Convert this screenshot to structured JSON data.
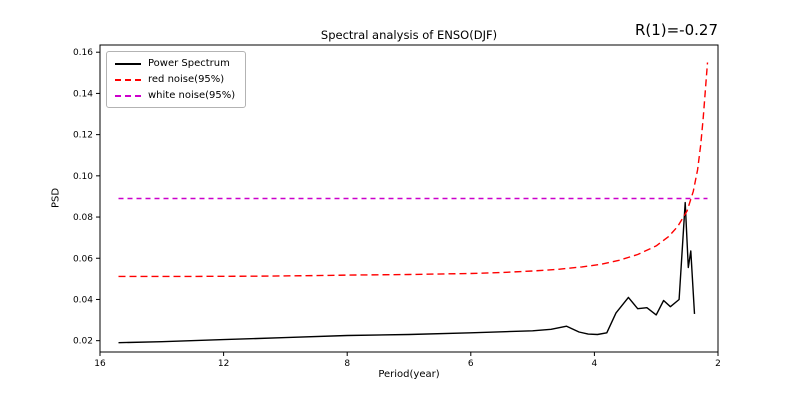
{
  "annotation": "R(1)=-0.27",
  "chart_data": {
    "type": "line",
    "title": "Spectral analysis of ENSO(DJF)",
    "xlabel": "Period(year)",
    "ylabel": "PSD",
    "x_ticks": [
      16,
      12,
      8,
      6,
      4,
      2
    ],
    "x_axis_note": "period in years decreasing left to right, ticks evenly spaced",
    "y_ticks": [
      "0.02",
      "0.04",
      "0.06",
      "0.08",
      "0.10",
      "0.12",
      "0.14",
      "0.16"
    ],
    "ylim": [
      0.0145,
      0.1635
    ],
    "grid": false,
    "legend_position": "upper left",
    "legend": [
      "Power Spectrum",
      "red noise(95%)",
      "white noise(95%)"
    ],
    "series": [
      {
        "id": "power-spectrum",
        "name": "Power Spectrum",
        "color": "#000000",
        "style": "solid",
        "points": [
          [
            15.4,
            0.019
          ],
          [
            14,
            0.0195
          ],
          [
            12,
            0.0205
          ],
          [
            10,
            0.0215
          ],
          [
            8,
            0.0225
          ],
          [
            7,
            0.023
          ],
          [
            6,
            0.0238
          ],
          [
            5.5,
            0.0243
          ],
          [
            5,
            0.0248
          ],
          [
            4.7,
            0.0255
          ],
          [
            4.45,
            0.027
          ],
          [
            4.25,
            0.0242
          ],
          [
            4.1,
            0.0232
          ],
          [
            3.95,
            0.023
          ],
          [
            3.8,
            0.0238
          ],
          [
            3.65,
            0.0335
          ],
          [
            3.45,
            0.041
          ],
          [
            3.3,
            0.0355
          ],
          [
            3.15,
            0.036
          ],
          [
            3.0,
            0.0325
          ],
          [
            2.88,
            0.0395
          ],
          [
            2.77,
            0.0365
          ],
          [
            2.63,
            0.04
          ],
          [
            2.53,
            0.087
          ],
          [
            2.48,
            0.0555
          ],
          [
            2.44,
            0.0635
          ],
          [
            2.38,
            0.033
          ]
        ]
      },
      {
        "id": "red-noise",
        "name": "red noise(95%)",
        "color": "#ff0000",
        "style": "dashed",
        "dash": "7 4",
        "points": [
          [
            15.4,
            0.0512
          ],
          [
            13,
            0.0512
          ],
          [
            11,
            0.0513
          ],
          [
            9,
            0.0516
          ],
          [
            8,
            0.0518
          ],
          [
            7,
            0.0521
          ],
          [
            6,
            0.0526
          ],
          [
            5.5,
            0.0531
          ],
          [
            5,
            0.0538
          ],
          [
            4.6,
            0.0546
          ],
          [
            4.2,
            0.0558
          ],
          [
            3.9,
            0.057
          ],
          [
            3.6,
            0.059
          ],
          [
            3.3,
            0.0618
          ],
          [
            3.0,
            0.066
          ],
          [
            2.8,
            0.0705
          ],
          [
            2.65,
            0.0755
          ],
          [
            2.5,
            0.083
          ],
          [
            2.4,
            0.0925
          ],
          [
            2.33,
            0.103
          ],
          [
            2.28,
            0.115
          ],
          [
            2.24,
            0.128
          ],
          [
            2.2,
            0.143
          ],
          [
            2.17,
            0.155
          ]
        ]
      },
      {
        "id": "white-noise",
        "name": "white noise(95%)",
        "color": "#cc00cc",
        "style": "dashed",
        "dash": "5 4",
        "points": [
          [
            15.4,
            0.089
          ],
          [
            2.17,
            0.089
          ]
        ]
      }
    ]
  }
}
